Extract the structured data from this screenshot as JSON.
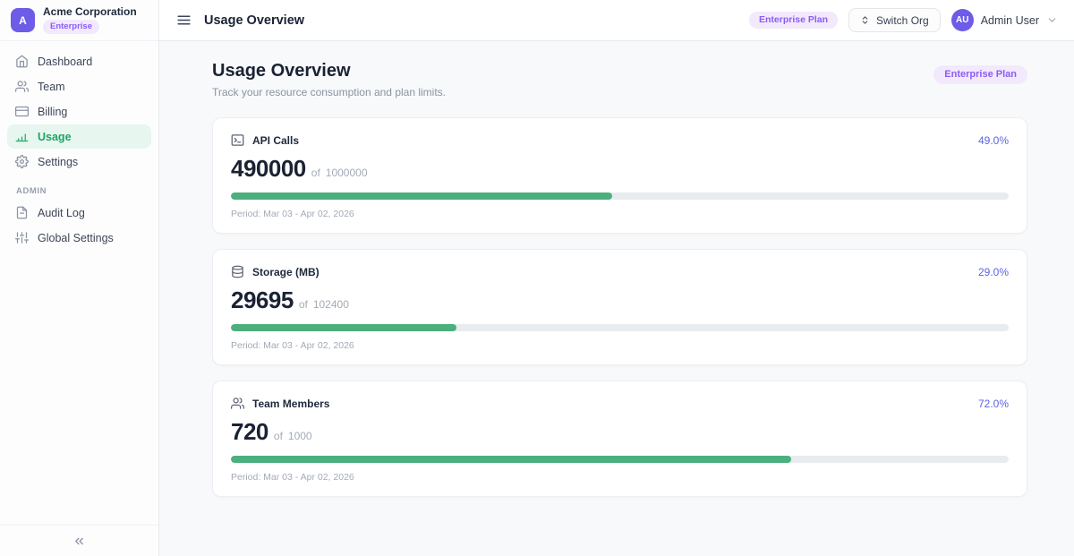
{
  "colors": {
    "accent_purple": "#6c5ce7",
    "badge_purple_bg": "#f3e9fd",
    "badge_purple_text": "#8b5cf6",
    "active_nav_bg": "#e7f6ee",
    "active_nav_text": "#1ea565",
    "progress_green": "#4caf7e",
    "progress_track": "#e9ecef",
    "percent_text": "#5c64e4"
  },
  "sidebar": {
    "org": {
      "initial": "A",
      "name": "Acme Corporation",
      "plan_badge": "Enterprise"
    },
    "nav": [
      {
        "label": "Dashboard",
        "icon": "home-icon",
        "active": false
      },
      {
        "label": "Team",
        "icon": "users-icon",
        "active": false
      },
      {
        "label": "Billing",
        "icon": "credit-card-icon",
        "active": false
      },
      {
        "label": "Usage",
        "icon": "bar-chart-icon",
        "active": true
      },
      {
        "label": "Settings",
        "icon": "gear-icon",
        "active": false
      }
    ],
    "admin_section_label": "ADMIN",
    "admin_nav": [
      {
        "label": "Audit Log",
        "icon": "file-text-icon"
      },
      {
        "label": "Global Settings",
        "icon": "sliders-icon"
      }
    ]
  },
  "topbar": {
    "title": "Usage Overview",
    "plan_badge": "Enterprise Plan",
    "switch_org_label": "Switch Org",
    "user": {
      "initials": "AU",
      "name": "Admin User"
    }
  },
  "main": {
    "title": "Usage Overview",
    "subtitle": "Track your resource consumption and plan limits.",
    "plan_badge": "Enterprise Plan",
    "cards": [
      {
        "label": "API Calls",
        "icon": "terminal-icon",
        "used": "490000",
        "of_label": "of",
        "limit": "1000000",
        "percent": "49.0%",
        "percent_value": 49,
        "period": "Period: Mar 03 - Apr 02, 2026"
      },
      {
        "label": "Storage (MB)",
        "icon": "database-icon",
        "used": "29695",
        "of_label": "of",
        "limit": "102400",
        "percent": "29.0%",
        "percent_value": 29,
        "period": "Period: Mar 03 - Apr 02, 2026"
      },
      {
        "label": "Team Members",
        "icon": "users-icon",
        "used": "720",
        "of_label": "of",
        "limit": "1000",
        "percent": "72.0%",
        "percent_value": 72,
        "period": "Period: Mar 03 - Apr 02, 2026"
      }
    ]
  }
}
